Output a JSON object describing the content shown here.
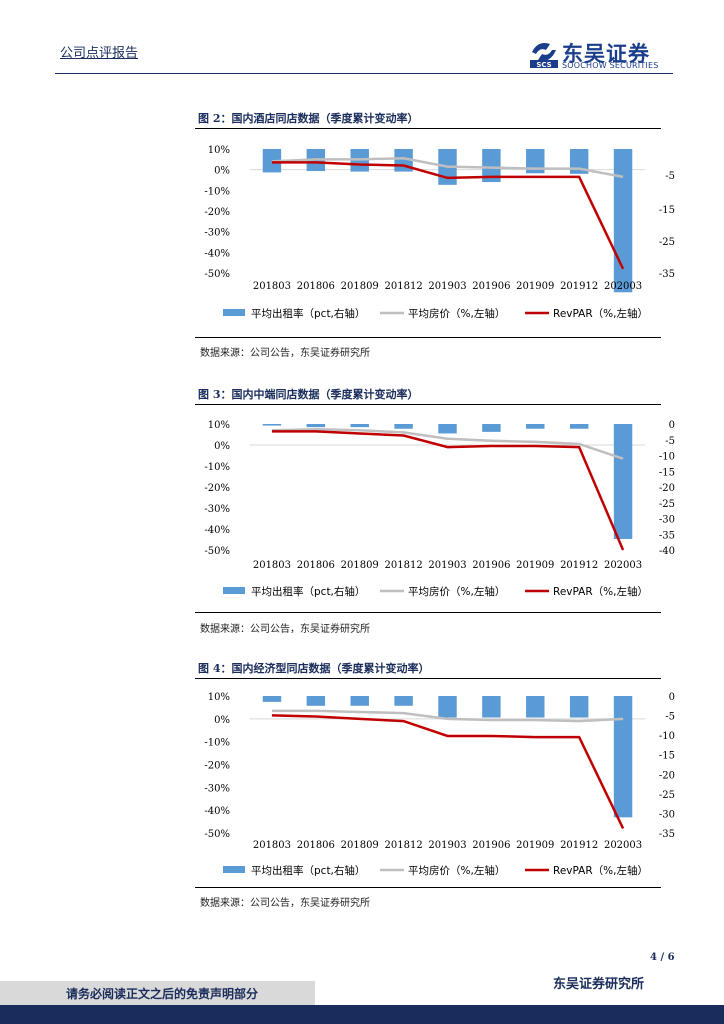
{
  "header": {
    "section_label": "公司点评报告",
    "logo_cn": "东吴证券",
    "logo_en": "SOOCHOW SECURITIES",
    "logo_mark": "SCS"
  },
  "colors": {
    "bar": "#5b9bd5",
    "avg_price": "#bfbfbf",
    "revpar": "#c00000",
    "navy": "#1a2c5b"
  },
  "figures": [
    {
      "title": "图 2：国内酒店同店数据（季度累计变动率）",
      "source": "数据来源：公司公告，东吴证券研究所",
      "chart_data": {
        "type": "bar",
        "categories": [
          "201803",
          "201806",
          "201809",
          "201812",
          "201903",
          "201906",
          "201909",
          "201912",
          "202003"
        ],
        "left_ticks": [
          "10%",
          "0%",
          "-10%",
          "-20%",
          "-30%",
          "-40%",
          "-50%"
        ],
        "right_ticks": [
          "-5",
          "-15",
          "-25",
          "-35"
        ],
        "left_ylim": [
          -50,
          10
        ],
        "right_ylim": [
          -35,
          10
        ],
        "series": [
          {
            "name": "平均出租率（pct,右轴）",
            "axis": "right",
            "kind": "bar",
            "values": [
              1.5,
              2.0,
              1.8,
              1.8,
              -3.0,
              -2.0,
              1.2,
              1.0,
              -42.0
            ]
          },
          {
            "name": "平均房价（%,左轴）",
            "axis": "left",
            "kind": "line",
            "values": [
              4.0,
              5.0,
              5.0,
              5.5,
              1.5,
              1.0,
              0.5,
              0.5,
              -3.5
            ]
          },
          {
            "name": "RevPAR（%,左轴）",
            "axis": "left",
            "kind": "line",
            "values": [
              3.5,
              3.5,
              2.5,
              2.0,
              -4.0,
              -3.5,
              -3.5,
              -3.5,
              -48.0
            ]
          }
        ],
        "legend": [
          "平均出租率（pct,右轴）",
          "平均房价（%,左轴）",
          "RevPAR（%,左轴）"
        ]
      }
    },
    {
      "title": "图 3：国内中端同店数据（季度累计变动率）",
      "source": "数据来源：公司公告，东吴证券研究所",
      "chart_data": {
        "type": "bar",
        "categories": [
          "201803",
          "201806",
          "201809",
          "201812",
          "201903",
          "201906",
          "201909",
          "201912",
          "202003"
        ],
        "left_ticks": [
          "10%",
          "0%",
          "-10%",
          "-20%",
          "-30%",
          "-40%",
          "-50%"
        ],
        "right_ticks": [
          "0",
          "-5",
          "-10",
          "-15",
          "-20",
          "-25",
          "-30",
          "-35",
          "-40"
        ],
        "left_ylim": [
          -50,
          10
        ],
        "right_ylim": [
          -40,
          0
        ],
        "series": [
          {
            "name": "平均出租率（pct,右轴）",
            "axis": "right",
            "kind": "bar",
            "values": [
              -0.5,
              -1.0,
              -1.0,
              -1.5,
              -3.0,
              -2.5,
              -1.5,
              -1.5,
              -36.5
            ]
          },
          {
            "name": "平均房价（%,左轴）",
            "axis": "left",
            "kind": "line",
            "values": [
              7.0,
              7.5,
              7.0,
              6.0,
              3.0,
              2.0,
              1.5,
              0.5,
              -6.5
            ]
          },
          {
            "name": "RevPAR（%,左轴）",
            "axis": "left",
            "kind": "line",
            "values": [
              6.5,
              6.5,
              5.5,
              4.5,
              -1.0,
              -0.5,
              -0.5,
              -1.0,
              -50.0
            ]
          }
        ],
        "legend": [
          "平均出租率（pct,右轴）",
          "平均房价（%,左轴）",
          "RevPAR（%,左轴）"
        ]
      }
    },
    {
      "title": "图 4：国内经济型同店数据（季度累计变动率）",
      "source": "数据来源：公司公告，东吴证券研究所",
      "chart_data": {
        "type": "bar",
        "categories": [
          "201803",
          "201806",
          "201809",
          "201812",
          "201903",
          "201906",
          "201909",
          "201912",
          "202003"
        ],
        "left_ticks": [
          "10%",
          "0%",
          "-10%",
          "-20%",
          "-30%",
          "-40%",
          "-50%"
        ],
        "right_ticks": [
          "0",
          "-5",
          "-10",
          "-15",
          "-20",
          "-25",
          "-30",
          "-35"
        ],
        "left_ylim": [
          -50,
          10
        ],
        "right_ylim": [
          -35,
          0
        ],
        "series": [
          {
            "name": "平均出租率（pct,右轴）",
            "axis": "right",
            "kind": "bar",
            "values": [
              -1.5,
              -2.5,
              -2.5,
              -2.5,
              -5.5,
              -5.5,
              -5.5,
              -5.5,
              -31.0
            ]
          },
          {
            "name": "平均房价（%,左轴）",
            "axis": "left",
            "kind": "line",
            "values": [
              3.5,
              3.5,
              3.0,
              2.5,
              0.0,
              -0.5,
              -0.5,
              -1.0,
              0.0
            ]
          },
          {
            "name": "RevPAR（%,左轴）",
            "axis": "left",
            "kind": "line",
            "values": [
              1.5,
              1.0,
              0.0,
              -1.0,
              -7.5,
              -7.5,
              -8.0,
              -8.0,
              -48.0
            ]
          }
        ],
        "legend": [
          "平均出租率（pct,右轴）",
          "平均房价（%,左轴）",
          "RevPAR（%,左轴）"
        ]
      }
    }
  ],
  "footer": {
    "page_number": "4 / 6",
    "brand": "东吴证券研究所",
    "disclaimer": "请务必阅读正文之后的免责声明部分"
  }
}
